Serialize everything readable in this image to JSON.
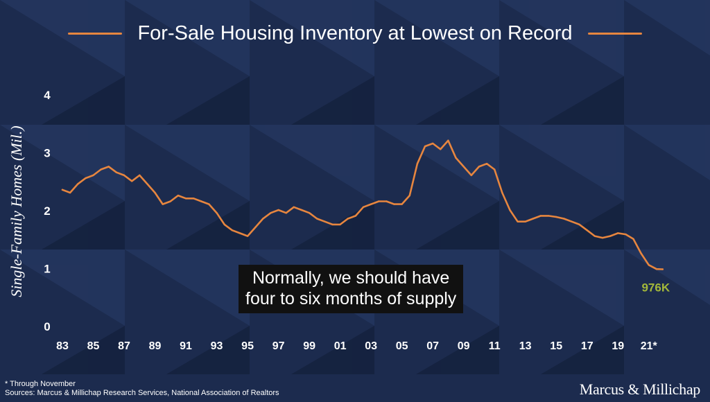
{
  "title": "For-Sale Housing Inventory at Lowest on Record",
  "footnote_1": "* Through November",
  "footnote_2": "Sources: Marcus & Millichap Research Services, National Association of Realtors",
  "logo": "Marcus & Millichap",
  "colors": {
    "background": "#1c2b4e",
    "line": "#e7863f",
    "callout": "#a3b83a",
    "accent_rule": "#e7863f"
  },
  "chart_data": {
    "type": "line",
    "title": "For-Sale Housing Inventory at Lowest on Record",
    "xlabel": "",
    "ylabel": "Single-Family Homes (Mil.)",
    "xlim": [
      1983,
      2022
    ],
    "ylim": [
      0,
      4
    ],
    "yticks": [
      0,
      1,
      2,
      3,
      4
    ],
    "xtick_labels": [
      "83",
      "85",
      "87",
      "89",
      "91",
      "93",
      "95",
      "97",
      "99",
      "01",
      "03",
      "05",
      "07",
      "09",
      "11",
      "13",
      "15",
      "17",
      "19",
      "21*"
    ],
    "xtick_years": [
      1983,
      1985,
      1987,
      1989,
      1991,
      1993,
      1995,
      1997,
      1999,
      2001,
      2003,
      2005,
      2007,
      2009,
      2011,
      2013,
      2015,
      2017,
      2019,
      2021
    ],
    "grid": false,
    "callout_label": "976K",
    "annotation": [
      "Normally, we should have",
      "four to six months of supply"
    ],
    "series": [
      {
        "x": [
          1983.0,
          1983.5,
          1984.0,
          1984.5,
          1985.0,
          1985.5,
          1986.0,
          1986.5,
          1987.0,
          1987.5,
          1988.0,
          1988.5,
          1989.0,
          1989.5,
          1990.0,
          1990.5,
          1991.0,
          1991.5,
          1992.0,
          1992.5,
          1993.0,
          1993.5,
          1994.0,
          1994.5,
          1995.0,
          1995.5,
          1996.0,
          1996.5,
          1997.0,
          1997.5,
          1998.0,
          1998.5,
          1999.0,
          1999.5,
          2000.0,
          2000.5,
          2001.0,
          2001.5,
          2002.0,
          2002.5,
          2003.0,
          2003.5,
          2004.0,
          2004.5,
          2005.0,
          2005.5,
          2006.0,
          2006.5,
          2007.0,
          2007.5,
          2008.0,
          2008.5,
          2009.0,
          2009.5,
          2010.0,
          2010.5,
          2011.0,
          2011.5,
          2012.0,
          2012.5,
          2013.0,
          2013.5,
          2014.0,
          2014.5,
          2015.0,
          2015.5,
          2016.0,
          2016.5,
          2017.0,
          2017.5,
          2018.0,
          2018.5,
          2019.0,
          2019.5,
          2020.0,
          2020.5,
          2021.0,
          2021.5,
          2021.9
        ],
        "y": [
          2.35,
          2.3,
          2.45,
          2.55,
          2.6,
          2.7,
          2.75,
          2.65,
          2.6,
          2.5,
          2.6,
          2.45,
          2.3,
          2.1,
          2.15,
          2.25,
          2.2,
          2.2,
          2.15,
          2.1,
          1.95,
          1.75,
          1.65,
          1.6,
          1.55,
          1.7,
          1.85,
          1.95,
          2.0,
          1.95,
          2.05,
          2.0,
          1.95,
          1.85,
          1.8,
          1.75,
          1.75,
          1.85,
          1.9,
          2.05,
          2.1,
          2.15,
          2.15,
          2.1,
          2.1,
          2.25,
          2.8,
          3.1,
          3.15,
          3.05,
          3.2,
          2.9,
          2.75,
          2.6,
          2.75,
          2.8,
          2.7,
          2.3,
          2.0,
          1.8,
          1.8,
          1.85,
          1.9,
          1.9,
          1.88,
          1.85,
          1.8,
          1.75,
          1.65,
          1.55,
          1.52,
          1.55,
          1.6,
          1.58,
          1.5,
          1.25,
          1.05,
          0.98,
          0.976
        ]
      }
    ]
  }
}
